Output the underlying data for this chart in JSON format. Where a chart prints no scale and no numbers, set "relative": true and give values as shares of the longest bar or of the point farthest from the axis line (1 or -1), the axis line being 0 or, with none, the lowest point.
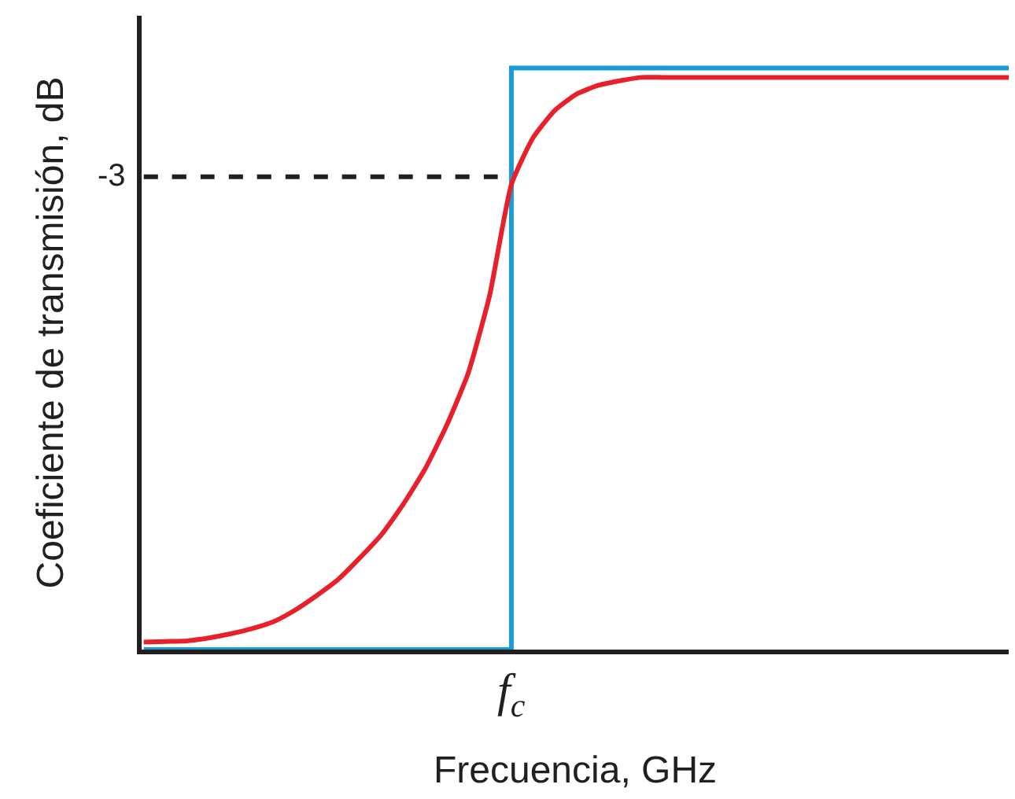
{
  "chart_data": {
    "type": "line",
    "relative": true,
    "xlabel": "Frecuencia, GHz",
    "ylabel": "Coeficiente de transmisión, dB",
    "categories": [
      null,
      null,
      null,
      null,
      null,
      null,
      null,
      null,
      null,
      null,
      null,
      null,
      null,
      null,
      null,
      null,
      null,
      null,
      null,
      null,
      null,
      null,
      null,
      null,
      null,
      null,
      null,
      null,
      null,
      null,
      null,
      null,
      null,
      null,
      null,
      null,
      null,
      null,
      null,
      null,
      null
    ],
    "annotations": [
      "-3",
      "f$_{c}$"
    ],
    "series": [
      {
        "type": "step",
        "color": "#1a9ad6",
        "values": [
          0,
          0,
          0,
          0,
          0,
          0,
          0,
          0,
          0,
          0,
          0,
          0,
          0,
          0,
          0,
          0,
          0,
          1,
          1,
          1,
          1,
          1,
          1,
          1,
          1,
          1,
          1,
          1,
          1,
          1,
          1,
          1,
          1,
          1,
          1,
          1,
          1,
          1,
          1,
          1,
          1
        ]
      },
      {
        "color": "#e8202a",
        "values": [
          0.013,
          0.014,
          0.015,
          0.02,
          0.027,
          0.036,
          0.048,
          0.068,
          0.093,
          0.121,
          0.158,
          0.198,
          0.25,
          0.31,
          0.385,
          0.475,
          0.61,
          0.8,
          0.88,
          0.927,
          0.955,
          0.97,
          0.978,
          0.984,
          0.984,
          0.984,
          0.984,
          0.984,
          0.984,
          0.984,
          0.984,
          0.984,
          0.984,
          0.984,
          0.984,
          0.984,
          0.984,
          0.984,
          0.984,
          0.984,
          0.984
        ]
      },
      {
        "color": "#231f20",
        "line_style": "dashed",
        "values": [
          0.813,
          0.813,
          0.813,
          0.813,
          0.813,
          0.813,
          0.813,
          0.813,
          0.813,
          0.813,
          0.813,
          0.813,
          0.813,
          0.813,
          0.813,
          0.813,
          0.813,
          0.813,
          null,
          null,
          null,
          null,
          null,
          null,
          null,
          null,
          null,
          null,
          null,
          null,
          null,
          null,
          null,
          null,
          null,
          null,
          null,
          null,
          null,
          null,
          null
        ]
      }
    ],
    "marker": "none"
  }
}
